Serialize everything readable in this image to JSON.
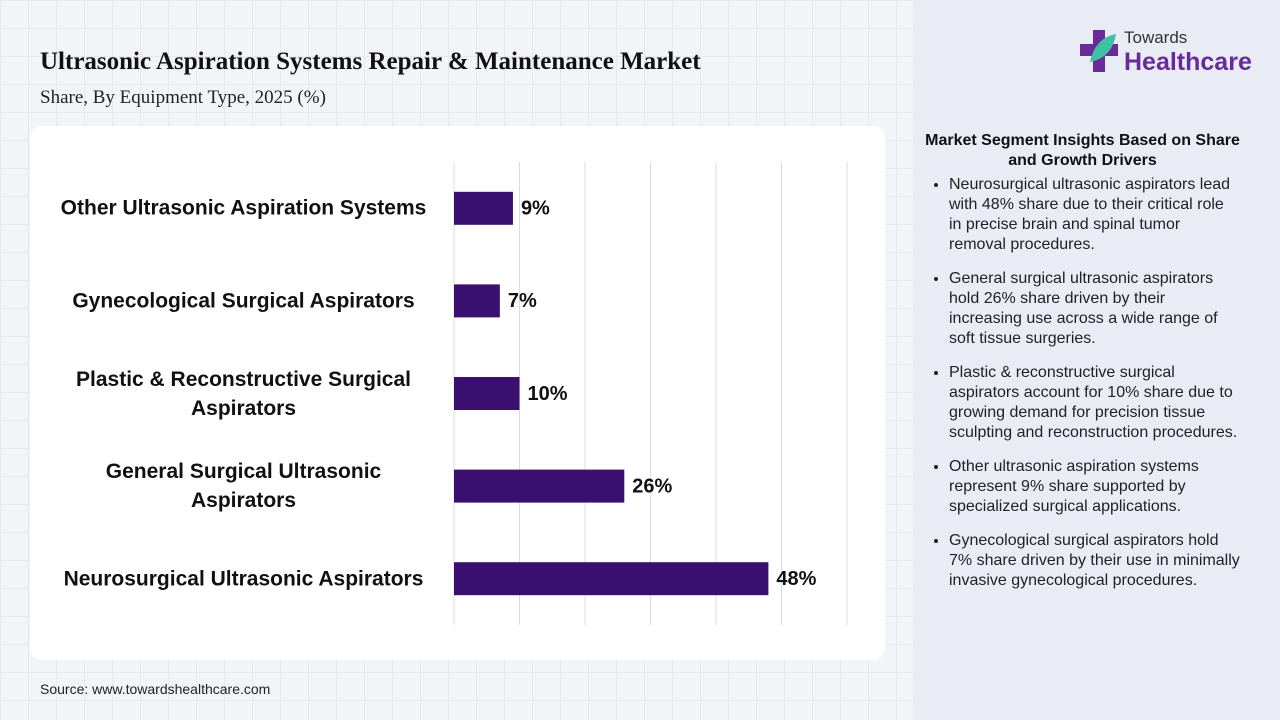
{
  "chart_data": {
    "type": "bar",
    "orientation": "horizontal",
    "title": "Ultrasonic Aspiration Systems Repair & Maintenance Market",
    "subtitle": "Share, By Equipment Type, 2025 (%)",
    "categories": [
      "Other Ultrasonic Aspiration Systems",
      "Gynecological Surgical Aspirators",
      "Plastic & Reconstructive Surgical Aspirators",
      "General Surgical Ultrasonic Aspirators",
      "Neurosurgical Ultrasonic Aspirators"
    ],
    "values": [
      9,
      7,
      10,
      26,
      48
    ],
    "value_labels": [
      "9%",
      "7%",
      "10%",
      "26%",
      "48%"
    ],
    "color": "#3b0f70",
    "xlim": [
      0,
      60
    ],
    "xticks": [
      0,
      10,
      20,
      30,
      40,
      50,
      60
    ],
    "grid": true,
    "source": "Source: www.towardshealthcare.com"
  },
  "brand": {
    "line1": "Towards",
    "line2": "Healthcare"
  },
  "insights": {
    "title": "Market Segment Insights Based on Share and Growth Drivers",
    "items": [
      "Neurosurgical ultrasonic aspirators lead with 48% share due to their critical role in precise brain and spinal tumor removal procedures.",
      "General surgical ultrasonic aspirators hold 26% share driven by their increasing use across a wide range of soft tissue surgeries.",
      "Plastic & reconstructive surgical aspirators account for 10% share due to growing demand for precision tissue sculpting and reconstruction procedures.",
      "Other ultrasonic aspiration systems represent 9% share supported by specialized surgical applications.",
      "Gynecological surgical aspirators hold 7% share driven by their use in minimally invasive gynecological procedures."
    ]
  }
}
